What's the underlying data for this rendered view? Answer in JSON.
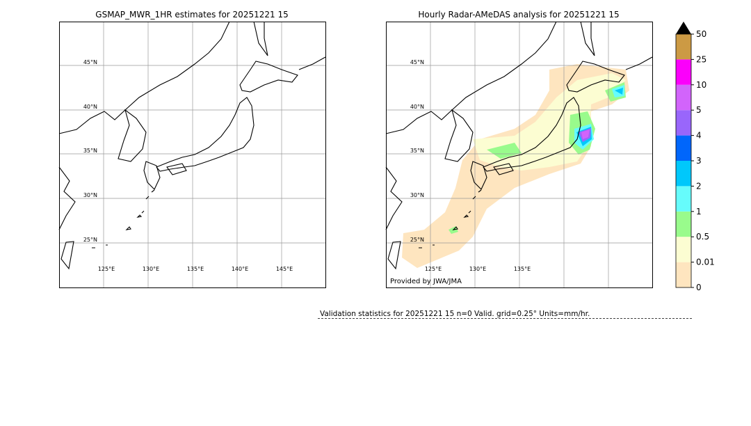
{
  "panels": [
    {
      "title": "GSMAP_MWR_1HR estimates for 20251221 15",
      "lat_labels": [
        "45°N",
        "40°N",
        "35°N",
        "30°N",
        "25°N"
      ],
      "lon_labels": [
        "125°E",
        "130°E",
        "135°E",
        "140°E",
        "145°E"
      ]
    },
    {
      "title": "Hourly Radar-AMeDAS analysis for 20251221 15",
      "lat_labels": [
        "45°N",
        "40°N",
        "35°N",
        "30°N",
        "25°N"
      ],
      "lon_labels": [
        "125°E",
        "130°E",
        "135°E"
      ],
      "credit": "Provided by JWA/JMA"
    }
  ],
  "colorbar": {
    "labels": [
      0,
      0.01,
      0.5,
      1,
      2,
      3,
      4,
      5,
      10,
      25,
      50
    ],
    "colors": [
      "#fee5bf",
      "#fcfdd2",
      "#99fb8c",
      "#66fcfc",
      "#00c8fb",
      "#0066fb",
      "#9966fb",
      "#d264fb",
      "#fb00fb",
      "#cc9a44"
    ]
  },
  "footer": "Validation statistics for 20251221 15  n=0 Valid. grid=0.25° Units=mm/hr."
}
